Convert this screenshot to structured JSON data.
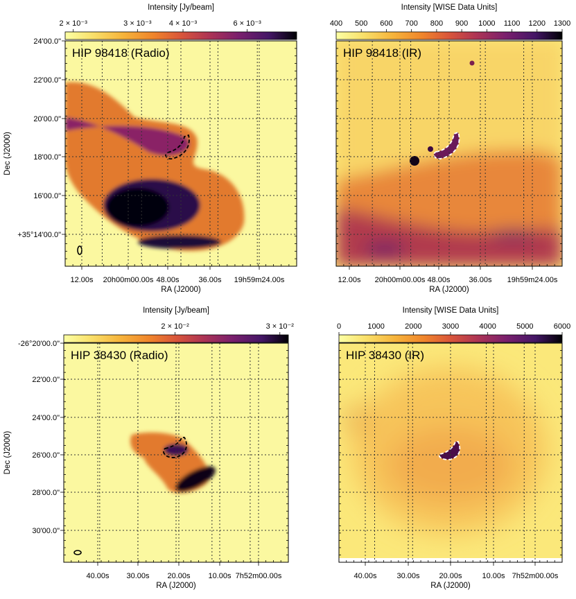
{
  "chart_data": [
    {
      "type": "heatmap",
      "title": "HIP 98418 (Radio)",
      "colorbar_label": "Intensity [Jy/beam]",
      "colorbar_scale": "log",
      "colorbar_range": [
        0.0019,
        0.0082
      ],
      "colorbar_ticks": [
        {
          "v": 0.002,
          "label": "2 × 10⁻³"
        },
        {
          "v": 0.003,
          "label": "3 × 10⁻³"
        },
        {
          "v": 0.004,
          "label": "4 × 10⁻³"
        },
        {
          "v": 0.006,
          "label": "6 × 10⁻³"
        }
      ],
      "colormap": "inferno_r",
      "xlabel": "RA (J2000)",
      "ylabel": "Dec (J2000)",
      "xticks": [
        "12.00s",
        "20h00m00.00s",
        "48.00s",
        "36.00s",
        "19h59m24.00s"
      ],
      "yticks": [
        "24'00.0\"",
        "22'00.0\"",
        "20'00.0\"",
        "18'00.0\"",
        "16'00.0\"",
        "+35°14'00.0\""
      ],
      "grid": true,
      "contour_style": "dashed-black",
      "beam": true
    },
    {
      "type": "heatmap",
      "title": "HIP 98418 (IR)",
      "colorbar_label": "Intensity [WISE Data Units]",
      "colorbar_scale": "linear",
      "colorbar_range": [
        400,
        1300
      ],
      "colorbar_ticks": [
        {
          "v": 400,
          "label": "400"
        },
        {
          "v": 500,
          "label": "500"
        },
        {
          "v": 600,
          "label": "600"
        },
        {
          "v": 700,
          "label": "700"
        },
        {
          "v": 800,
          "label": "800"
        },
        {
          "v": 900,
          "label": "900"
        },
        {
          "v": 1000,
          "label": "1000"
        },
        {
          "v": 1100,
          "label": "1100"
        },
        {
          "v": 1200,
          "label": "1200"
        },
        {
          "v": 1300,
          "label": "1300"
        }
      ],
      "colormap": "inferno_r",
      "xlabel": "RA (J2000)",
      "xticks": [
        "12.00s",
        "20h00m00.00s",
        "48.00s",
        "36.00s",
        "19h59m24.00s"
      ],
      "grid": true,
      "contour_style": "dashed-white"
    },
    {
      "type": "heatmap",
      "title": "HIP 38430 (Radio)",
      "colorbar_label": "Intensity [Jy/beam]",
      "colorbar_scale": "log",
      "colorbar_range": [
        0.013,
        0.031
      ],
      "colorbar_ticks": [
        {
          "v": 0.02,
          "label": "2 × 10⁻²"
        },
        {
          "v": 0.03,
          "label": "3 × 10⁻²"
        }
      ],
      "colormap": "inferno_r",
      "xlabel": "RA (J2000)",
      "ylabel": "Dec (J2000)",
      "xticks": [
        "40.00s",
        "30.00s",
        "20.00s",
        "10.00s",
        "7h52m00.00s"
      ],
      "yticks": [
        "-26°20'00.0\"",
        "22'00.0\"",
        "24'00.0\"",
        "26'00.0\"",
        "28'00.0\"",
        "30'00.0\""
      ],
      "grid": true,
      "contour_style": "dashed-black",
      "beam": true
    },
    {
      "type": "heatmap",
      "title": "HIP 38430 (IR)",
      "colorbar_label": "Intensity [WISE Data Units]",
      "colorbar_scale": "linear",
      "colorbar_range": [
        0,
        6000
      ],
      "colorbar_ticks": [
        {
          "v": 0,
          "label": "0"
        },
        {
          "v": 1000,
          "label": "1000"
        },
        {
          "v": 2000,
          "label": "2000"
        },
        {
          "v": 3000,
          "label": "3000"
        },
        {
          "v": 4000,
          "label": "4000"
        },
        {
          "v": 5000,
          "label": "5000"
        },
        {
          "v": 6000,
          "label": "6000"
        }
      ],
      "colormap": "inferno_r",
      "xlabel": "RA (J2000)",
      "xticks": [
        "40.00s",
        "30.00s",
        "20.00s",
        "10.00s",
        "7h52m00.00s"
      ],
      "grid": true,
      "contour_style": "dashed-white"
    }
  ]
}
